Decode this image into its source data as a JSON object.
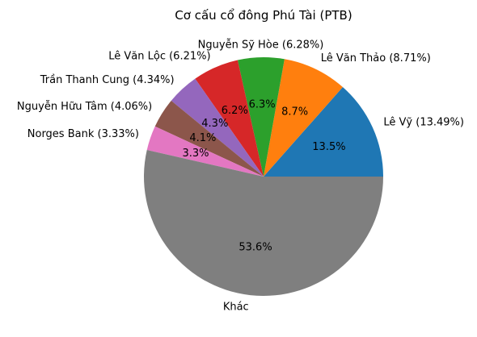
{
  "chart_data": {
    "type": "pie",
    "title": "Cơ cấu cổ đông Phú Tài (PTB)",
    "slices": [
      {
        "label": "Lê Vỹ (13.49%)",
        "value": 13.49,
        "pct_label": "13.5%",
        "color": "#1f77b4"
      },
      {
        "label": "Lê Văn Thảo (8.71%)",
        "value": 8.71,
        "pct_label": "8.7%",
        "color": "#ff7f0e"
      },
      {
        "label": "Nguyễn Sỹ Hòe (6.28%)",
        "value": 6.28,
        "pct_label": "6.3%",
        "color": "#2ca02c"
      },
      {
        "label": "Lê Văn Lộc (6.21%)",
        "value": 6.21,
        "pct_label": "6.2%",
        "color": "#d62728"
      },
      {
        "label": "Trần Thanh Cung (4.34%)",
        "value": 4.34,
        "pct_label": "4.3%",
        "color": "#9467bd"
      },
      {
        "label": "Nguyễn Hữu Tâm (4.06%)",
        "value": 4.06,
        "pct_label": "4.1%",
        "color": "#8c564b"
      },
      {
        "label": "Norges Bank (3.33%)",
        "value": 3.33,
        "pct_label": "3.3%",
        "color": "#e377c2"
      },
      {
        "label": "Khác",
        "value": 53.58,
        "pct_label": "53.6%",
        "color": "#7f7f7f"
      }
    ]
  }
}
